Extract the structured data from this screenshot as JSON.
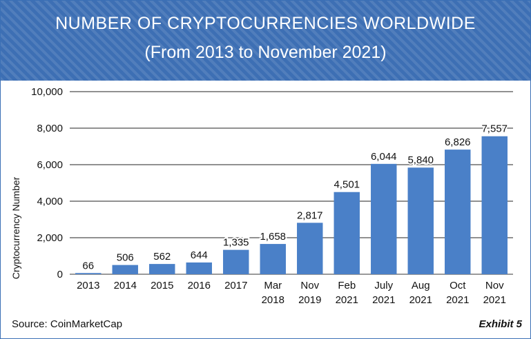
{
  "header": {
    "title": "NUMBER OF CRYPTOCURRENCIES WORLDWIDE",
    "subtitle": "(From 2013 to November 2021)"
  },
  "footer": {
    "source": "Source: CoinMarketCap",
    "exhibit": "Exhibit 5"
  },
  "colors": {
    "header_bg": "#3d6fb4",
    "bar": "#4a80c8"
  },
  "chart_data": {
    "type": "bar",
    "ylabel": "Cryptocurrency Number",
    "ylim": [
      0,
      10000
    ],
    "yticks": [
      0,
      2000,
      4000,
      6000,
      8000,
      10000
    ],
    "ytick_labels": [
      "0",
      "2,000",
      "4,000",
      "6,000",
      "8,000",
      "10,000"
    ],
    "grid": true,
    "categories": [
      [
        "2013"
      ],
      [
        "2014"
      ],
      [
        "2015"
      ],
      [
        "2016"
      ],
      [
        "2017"
      ],
      [
        "Mar",
        "2018"
      ],
      [
        "Nov",
        "2019"
      ],
      [
        "Feb",
        "2021"
      ],
      [
        "July",
        "2021"
      ],
      [
        "Aug",
        "2021"
      ],
      [
        "Oct",
        "2021"
      ],
      [
        "Nov",
        "2021"
      ]
    ],
    "values": [
      66,
      506,
      562,
      644,
      1335,
      1658,
      2817,
      4501,
      6044,
      5840,
      6826,
      7557
    ],
    "value_labels": [
      "66",
      "506",
      "562",
      "644",
      "1,335",
      "1,658",
      "2,817",
      "4,501",
      "6,044",
      "5,840",
      "6,826",
      "7,557"
    ]
  }
}
